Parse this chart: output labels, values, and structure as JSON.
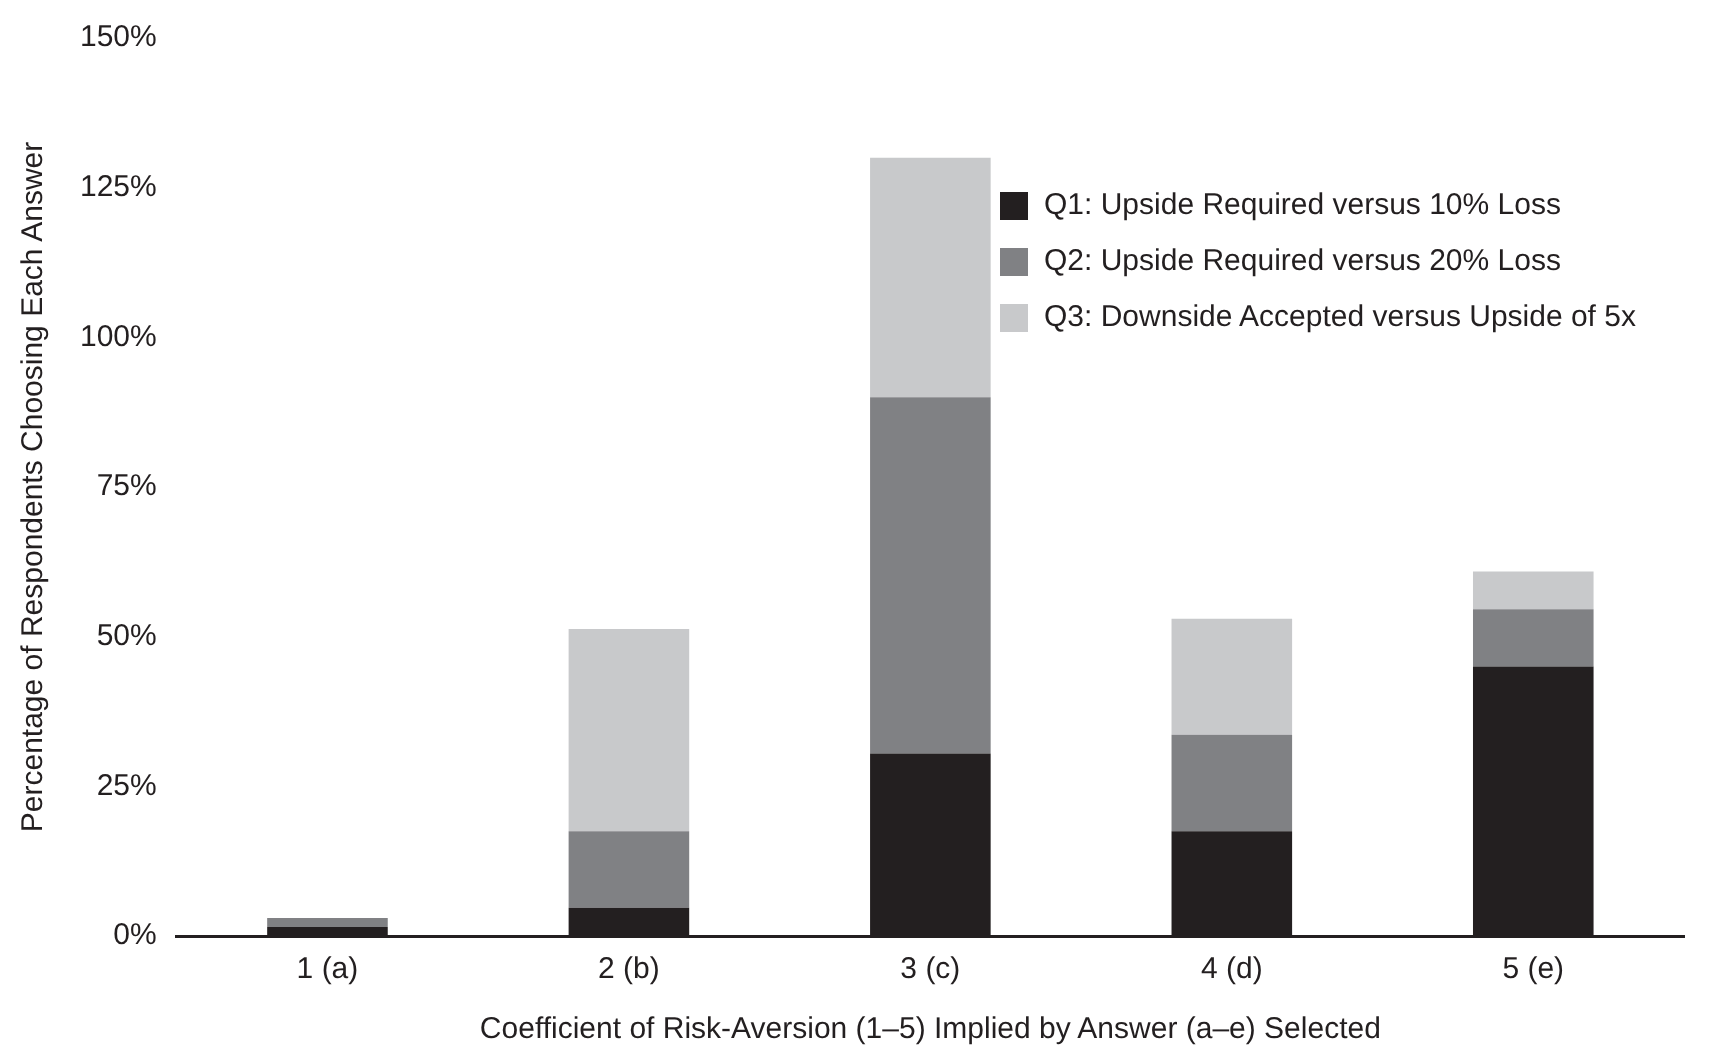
{
  "chart_data": {
    "type": "bar",
    "stacked": true,
    "xlabel": "Coefficient of Risk-Aversion (1–5) Implied by Answer (a–e) Selected",
    "ylabel": "Percentage of Respondents Choosing Each Answer",
    "categories": [
      "1 (a)",
      "2 (b)",
      "3 (c)",
      "4 (d)",
      "5 (e)"
    ],
    "series": [
      {
        "name": "Q1: Upside Required versus 10% Loss",
        "color": "#231f20",
        "values": [
          1.5,
          4.7,
          30.5,
          17.5,
          45
        ]
      },
      {
        "name": "Q2: Upside Required versus 20% Loss",
        "color": "#808184",
        "values": [
          1.5,
          12.8,
          59.5,
          16.1,
          9.6
        ]
      },
      {
        "name": "Q3: Downside Accepted versus Upside of 5x",
        "color": "#c8c9cb",
        "values": [
          0,
          33.8,
          40,
          19.4,
          6.3
        ]
      }
    ],
    "ylim": [
      0,
      150
    ],
    "yticks": [
      {
        "value": 0,
        "label": "0%"
      },
      {
        "value": 25,
        "label": "25%"
      },
      {
        "value": 50,
        "label": "50%"
      },
      {
        "value": 75,
        "label": "75%"
      },
      {
        "value": 100,
        "label": "100%"
      },
      {
        "value": 125,
        "label": "125%"
      },
      {
        "value": 150,
        "label": "150%"
      }
    ],
    "grid": false,
    "legend": "top right"
  }
}
